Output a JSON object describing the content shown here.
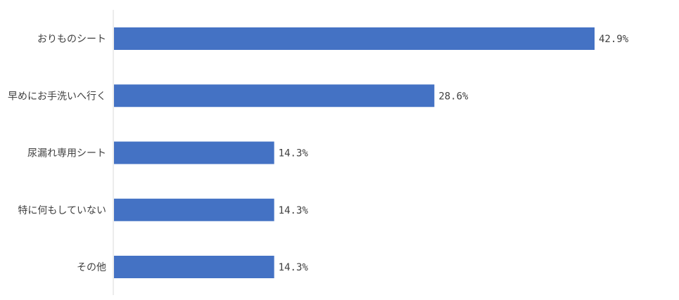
{
  "chart_data": {
    "type": "bar",
    "orientation": "horizontal",
    "categories": [
      "おりものシート",
      "早めにお手洗いへ行く",
      "尿漏れ専用シート",
      "特に何もしていない",
      "その他"
    ],
    "values": [
      42.9,
      28.6,
      14.3,
      14.3,
      14.3
    ],
    "value_labels": [
      "42.9%",
      "28.6%",
      "14.3%",
      "14.3%",
      "14.3%"
    ],
    "xlim": [
      0,
      50
    ],
    "grid": false,
    "legend": "none",
    "bar_color": "#4472C4",
    "axis_color": "#D9D9D9",
    "text_color": "#404040"
  }
}
